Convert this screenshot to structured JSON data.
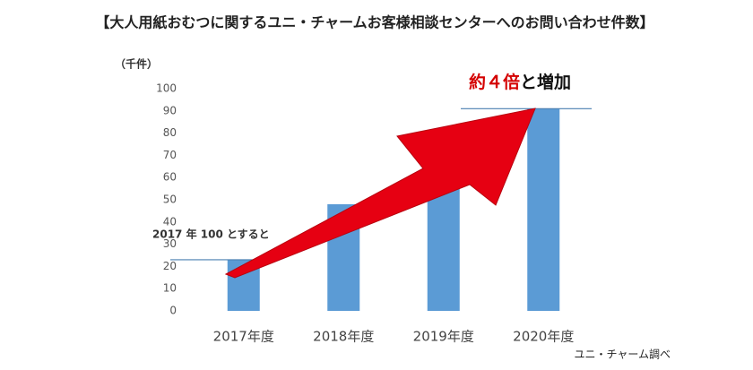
{
  "chart_data": {
    "type": "bar",
    "title": "【大人用紙おむつに関するユニ・チャームお客様相談センターへのお問い合わせ件数】",
    "y_unit": "（千件）",
    "categories": [
      "2017年度",
      "2018年度",
      "2019年度",
      "2020年度"
    ],
    "values": [
      23,
      48,
      57,
      91
    ],
    "color": "#5b9bd5",
    "ylim": [
      0,
      100
    ],
    "yticks": [
      0,
      10,
      20,
      30,
      40,
      50,
      60,
      70,
      80,
      90,
      100
    ],
    "grid": false,
    "annotations": {
      "baseline_note": "2017 年 100 とすると",
      "growth_highlight": "約４倍",
      "growth_rest": "と増加",
      "source": "ユニ・チャーム調べ"
    }
  }
}
